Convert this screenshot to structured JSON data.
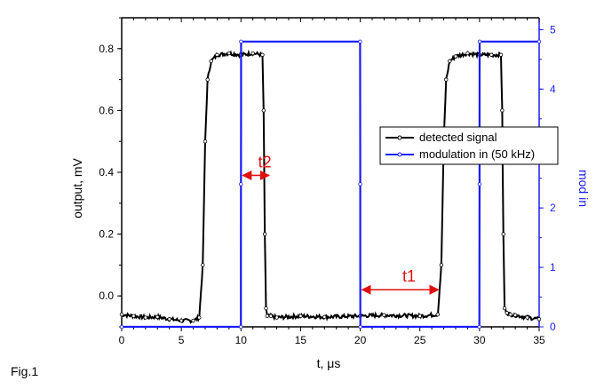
{
  "figure_label": "Fig.1",
  "colors": {
    "signal": "#000000",
    "modulation": "#1a1aff",
    "annotation": "#e01010",
    "axis_right": "#1a1aff"
  },
  "chart_data": {
    "type": "line",
    "xlabel": "t, μs",
    "ylabel_left": "output, mV",
    "ylabel_right": "mod in",
    "xlim": [
      0,
      35
    ],
    "ylim_left": [
      -0.1,
      0.9
    ],
    "ylim_right": [
      0,
      5.2
    ],
    "x_ticks": [
      "0",
      "5",
      "10",
      "15",
      "20",
      "25",
      "30",
      "35"
    ],
    "y_left_ticks": [
      "0.0",
      "0.2",
      "0.4",
      "0.6",
      "0.8"
    ],
    "y_right_ticks": [
      "0",
      "1",
      "2",
      "3",
      "4",
      "5"
    ],
    "legend_position": "upper-right",
    "series": [
      {
        "name": "detected signal",
        "axis": "left",
        "color": "#000000",
        "x": [
          0,
          1,
          2,
          3,
          4,
          5,
          6,
          6.5,
          6.8,
          7.0,
          7.2,
          7.5,
          8,
          9,
          10,
          11,
          11.8,
          11.9,
          12.0,
          12.1,
          12.2,
          12.5,
          13,
          15,
          17,
          20,
          22,
          25,
          26.5,
          26.8,
          27.0,
          27.2,
          27.5,
          28,
          29,
          30,
          31,
          31.8,
          31.9,
          32.0,
          32.1,
          32.3,
          32.6,
          33,
          34,
          35
        ],
        "y": [
          -0.06,
          -0.065,
          -0.07,
          -0.068,
          -0.075,
          -0.08,
          -0.08,
          -0.07,
          0.1,
          0.5,
          0.7,
          0.76,
          0.78,
          0.785,
          0.78,
          0.785,
          0.78,
          0.6,
          0.2,
          -0.04,
          -0.065,
          -0.065,
          -0.07,
          -0.065,
          -0.068,
          -0.065,
          -0.062,
          -0.065,
          -0.06,
          0.1,
          0.5,
          0.7,
          0.76,
          0.775,
          0.785,
          0.78,
          0.78,
          0.78,
          0.6,
          0.2,
          -0.04,
          -0.055,
          -0.06,
          -0.062,
          -0.07,
          -0.075
        ]
      },
      {
        "name": "modulation in (50 kHz)",
        "axis": "right",
        "color": "#1a1aff",
        "x": [
          0,
          9.99,
          10.0,
          10.01,
          19.99,
          20.0,
          20.01,
          29.99,
          30.0,
          30.01,
          35
        ],
        "y": [
          0,
          0,
          2.4,
          4.8,
          4.8,
          2.4,
          0,
          0,
          2.4,
          4.8,
          4.8
        ]
      }
    ],
    "annotations": [
      {
        "text": "t2",
        "x_from": 10,
        "x_to": 12.5,
        "y": 0.39,
        "color": "#e01010"
      },
      {
        "text": "t1",
        "x_from": 20,
        "x_to": 26.7,
        "y": 0.02,
        "color": "#e01010"
      }
    ]
  }
}
